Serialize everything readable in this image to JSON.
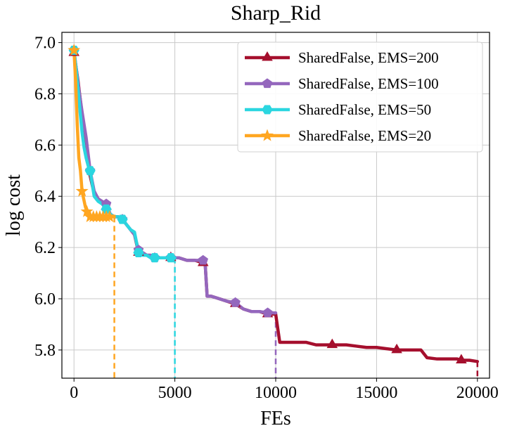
{
  "chart_data": {
    "type": "line",
    "title": "Sharp_Rid",
    "xlabel": "FEs",
    "ylabel": "log cost",
    "xlim": [
      -600,
      20600
    ],
    "ylim": [
      5.69,
      7.04
    ],
    "xticks": [
      0,
      5000,
      10000,
      15000,
      20000
    ],
    "xtick_labels": [
      "0",
      "5000",
      "10000",
      "15000",
      "20000"
    ],
    "yticks": [
      5.8,
      6.0,
      6.2,
      6.4,
      6.6,
      6.8,
      7.0
    ],
    "ytick_labels": [
      "5.8",
      "6.0",
      "6.2",
      "6.4",
      "6.6",
      "6.8",
      "7.0"
    ],
    "grid": true,
    "legend_position": "top-right",
    "series": [
      {
        "name": "SharedFalse, EMS=200",
        "color": "#a50f2d",
        "marker": "triangle",
        "end_x": 20000,
        "x": [
          0,
          200,
          400,
          600,
          800,
          1000,
          1200,
          1400,
          1600,
          1800,
          2000,
          2200,
          2400,
          2600,
          2800,
          3000,
          3200,
          3400,
          3600,
          3800,
          4000,
          4400,
          4800,
          5200,
          5600,
          6000,
          6400,
          6500,
          6600,
          6800,
          7200,
          7600,
          8000,
          8400,
          8800,
          9200,
          9600,
          10000,
          10200,
          10600,
          11000,
          11500,
          12000,
          12800,
          13500,
          14000,
          14500,
          15000,
          15500,
          16000,
          16500,
          17200,
          17500,
          18000,
          18500,
          19000,
          19200,
          19600,
          20000
        ],
        "y": [
          6.96,
          6.85,
          6.72,
          6.6,
          6.48,
          6.41,
          6.39,
          6.37,
          6.36,
          6.33,
          6.32,
          6.32,
          6.31,
          6.29,
          6.27,
          6.25,
          6.18,
          6.18,
          6.17,
          6.17,
          6.16,
          6.16,
          6.16,
          6.16,
          6.15,
          6.15,
          6.14,
          6.14,
          6.01,
          6.01,
          6.0,
          5.99,
          5.98,
          5.96,
          5.95,
          5.95,
          5.94,
          5.94,
          5.83,
          5.83,
          5.83,
          5.83,
          5.82,
          5.82,
          5.82,
          5.815,
          5.81,
          5.81,
          5.805,
          5.8,
          5.8,
          5.8,
          5.77,
          5.765,
          5.765,
          5.765,
          5.76,
          5.76,
          5.755
        ],
        "markers_at": [
          0,
          1600,
          3200,
          4800,
          6400,
          8000,
          9600,
          12800,
          16000,
          19200
        ]
      },
      {
        "name": "SharedFalse, EMS=100",
        "color": "#9467bd",
        "marker": "pentagon",
        "end_x": 10000,
        "x": [
          0,
          200,
          400,
          600,
          800,
          1000,
          1200,
          1400,
          1600,
          1800,
          2000,
          2200,
          2400,
          2600,
          2800,
          3000,
          3200,
          3400,
          3600,
          3800,
          4000,
          4400,
          4800,
          5200,
          5600,
          6000,
          6400,
          6500,
          6600,
          6800,
          7200,
          7600,
          8000,
          8400,
          8800,
          9200,
          9600,
          10000
        ],
        "y": [
          6.97,
          6.84,
          6.73,
          6.63,
          6.5,
          6.42,
          6.39,
          6.38,
          6.37,
          6.33,
          6.32,
          6.32,
          6.31,
          6.29,
          6.27,
          6.25,
          6.19,
          6.18,
          6.17,
          6.17,
          6.16,
          6.16,
          6.16,
          6.16,
          6.15,
          6.15,
          6.15,
          6.14,
          6.01,
          6.01,
          6.0,
          5.99,
          5.985,
          5.96,
          5.95,
          5.95,
          5.945,
          5.945
        ],
        "markers_at": [
          0,
          800,
          1600,
          2400,
          3200,
          4000,
          4800,
          6400,
          8000,
          9600
        ]
      },
      {
        "name": "SharedFalse, EMS=50",
        "color": "#2bd6e0",
        "marker": "hexagon",
        "end_x": 5000,
        "x": [
          0,
          100,
          200,
          300,
          400,
          500,
          600,
          700,
          800,
          1000,
          1200,
          1400,
          1600,
          1800,
          2000,
          2200,
          2400,
          2600,
          2800,
          3000,
          3200,
          3400,
          3600,
          3800,
          4000,
          4400,
          4800,
          5000
        ],
        "y": [
          6.97,
          6.9,
          6.82,
          6.73,
          6.65,
          6.59,
          6.55,
          6.52,
          6.5,
          6.4,
          6.38,
          6.37,
          6.35,
          6.33,
          6.32,
          6.32,
          6.31,
          6.29,
          6.27,
          6.26,
          6.18,
          6.17,
          6.17,
          6.16,
          6.16,
          6.16,
          6.16,
          6.16
        ],
        "markers_at": [
          0,
          800,
          1600,
          2400,
          3200,
          4000,
          4800
        ]
      },
      {
        "name": "SharedFalse, EMS=20",
        "color": "#ffa621",
        "marker": "star",
        "end_x": 2000,
        "x": [
          0,
          80,
          160,
          240,
          320,
          400,
          480,
          560,
          640,
          720,
          800,
          960,
          1120,
          1280,
          1440,
          1600,
          1760,
          1920,
          2000
        ],
        "y": [
          6.97,
          6.85,
          6.68,
          6.55,
          6.5,
          6.42,
          6.39,
          6.36,
          6.34,
          6.33,
          6.32,
          6.32,
          6.32,
          6.32,
          6.32,
          6.32,
          6.32,
          6.32,
          6.32
        ],
        "markers_at": [
          0,
          400,
          640,
          800,
          960,
          1120,
          1280,
          1440,
          1600,
          1760
        ]
      }
    ]
  }
}
